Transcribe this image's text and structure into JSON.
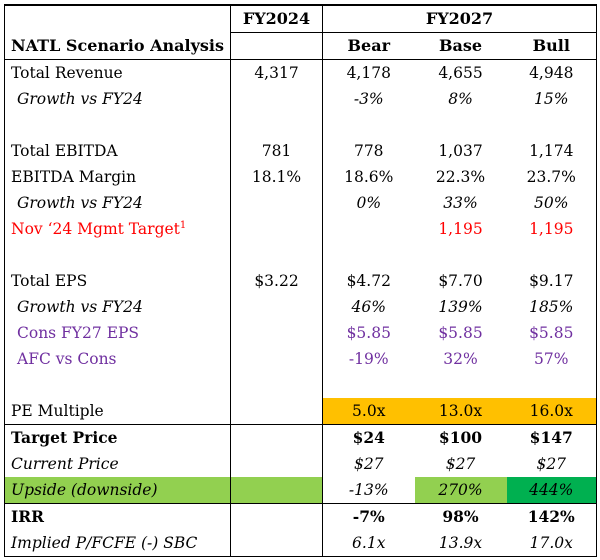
{
  "header": {
    "fy2024": "FY2024",
    "fy2027": "FY2027",
    "title": "NATL Scenario Analysis",
    "bear": "Bear",
    "base": "Base",
    "bull": "Bull"
  },
  "rows": {
    "total_revenue": {
      "label": "Total Revenue",
      "fy24": "4,317",
      "bear": "4,178",
      "base": "4,655",
      "bull": "4,948"
    },
    "rev_growth": {
      "label": "Growth vs FY24",
      "bear": "-3%",
      "base": "8%",
      "bull": "15%"
    },
    "total_ebitda": {
      "label": "Total EBITDA",
      "fy24": "781",
      "bear": "778",
      "base": "1,037",
      "bull": "1,174"
    },
    "ebitda_margin": {
      "label": "EBITDA Margin",
      "fy24": "18.1%",
      "bear": "18.6%",
      "base": "22.3%",
      "bull": "23.7%"
    },
    "ebitda_growth": {
      "label": "Growth vs FY24",
      "bear": "0%",
      "base": "33%",
      "bull": "50%"
    },
    "mgmt_target": {
      "label": "Nov ‘24 Mgmt Target",
      "footnote": "1",
      "base": "1,195",
      "bull": "1,195"
    },
    "total_eps": {
      "label": "Total EPS",
      "fy24": "$3.22",
      "bear": "$4.72",
      "base": "$7.70",
      "bull": "$9.17"
    },
    "eps_growth": {
      "label": "Growth vs FY24",
      "bear": "46%",
      "base": "139%",
      "bull": "185%"
    },
    "cons_eps": {
      "label": "Cons FY27 EPS",
      "bear": "$5.85",
      "base": "$5.85",
      "bull": "$5.85"
    },
    "afc_vs_cons": {
      "label": "AFC vs Cons",
      "bear": "-19%",
      "base": "32%",
      "bull": "57%"
    },
    "pe_multiple": {
      "label": "PE Multiple",
      "bear": "5.0x",
      "base": "13.0x",
      "bull": "16.0x"
    },
    "target_price": {
      "label": "Target Price",
      "bear": "$24",
      "base": "$100",
      "bull": "$147"
    },
    "current_price": {
      "label": "Current Price",
      "bear": "$27",
      "base": "$27",
      "bull": "$27"
    },
    "upside": {
      "label": "Upside (downside)",
      "bear": "-13%",
      "base": "270%",
      "bull": "444%"
    },
    "irr": {
      "label": "IRR",
      "bear": "-7%",
      "base": "98%",
      "bull": "142%"
    },
    "implied_pfcfe": {
      "label": "Implied P/FCFE (-) SBC",
      "bear": "6.1x",
      "base": "13.9x",
      "bull": "17.0x"
    }
  },
  "colors": {
    "orange": "#ffc000",
    "light_green": "#92d050",
    "dark_green": "#00b050",
    "red_text": "#ff0000",
    "purple_text": "#7030a0"
  }
}
